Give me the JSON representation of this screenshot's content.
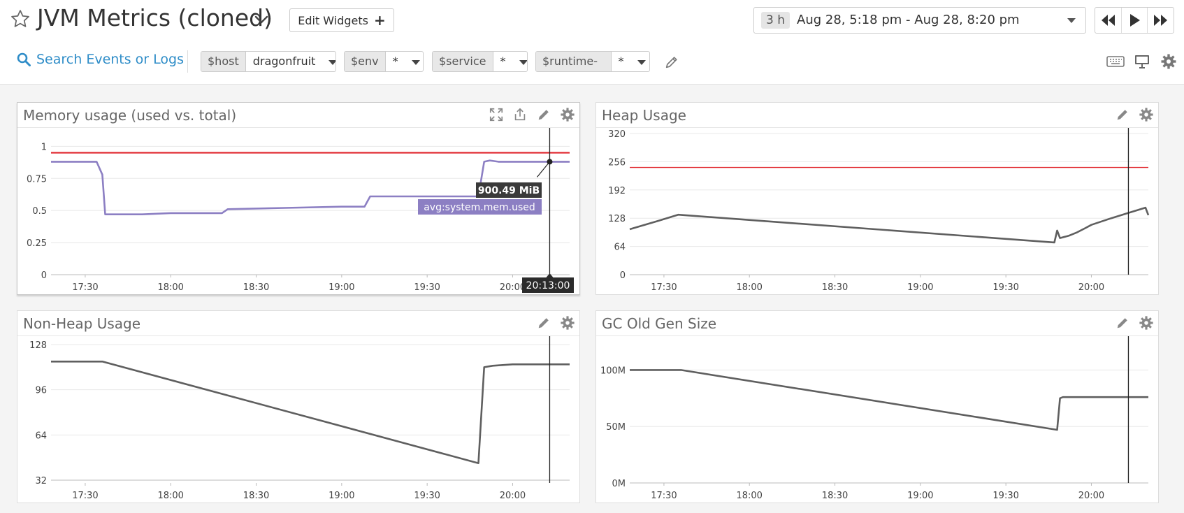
{
  "header": {
    "title": "JVM Metrics (cloned)",
    "edit_widgets_label": "Edit Widgets",
    "time_badge": "3 h",
    "time_range": "Aug 28, 5:18 pm - Aug 28, 8:20 pm"
  },
  "filters": {
    "search_label": "Search Events or Logs",
    "template_vars": [
      {
        "name": "$host",
        "value": "dragonfruit"
      },
      {
        "name": "$env",
        "value": "*"
      },
      {
        "name": "$service",
        "value": "*"
      },
      {
        "name": "$runtime-id",
        "value": "*"
      }
    ]
  },
  "icons": [
    "star-icon",
    "chevron-down-icon",
    "plus-icon",
    "rewind-icon",
    "play-icon",
    "fast-forward-icon",
    "search-icon",
    "pencil-icon",
    "keyboard-icon",
    "monitor-icon",
    "gear-icon",
    "expand-icon",
    "share-icon"
  ],
  "colors": {
    "accent": "#2f8dc8",
    "series_purple": "#8c7fc3",
    "series_gray": "#5f5f5f",
    "threshold_red": "#e0242b"
  },
  "widgets": [
    {
      "title": "Memory usage (used vs. total)"
    },
    {
      "title": "Heap Usage"
    },
    {
      "title": "Non-Heap Usage"
    },
    {
      "title": "GC Old Gen Size"
    }
  ],
  "tooltip": {
    "value": "900.49 MiB",
    "series": "avg:system.mem.used",
    "time": "20:13:00"
  },
  "chart_data": [
    {
      "type": "line",
      "xlabel": "",
      "ylabel": "",
      "x_ticks": [
        "17:30",
        "18:00",
        "18:30",
        "19:00",
        "19:30",
        "20:00"
      ],
      "y_ticks": [
        "0",
        "0.25",
        "0.5",
        "0.75",
        "1"
      ],
      "xlim": [
        "17:18",
        "20:20"
      ],
      "ylim": [
        0,
        1.1
      ],
      "threshold": 0.95,
      "cursor_x": "20:13",
      "series": [
        {
          "name": "avg:system.mem.used",
          "x": [
            "17:18",
            "17:34",
            "17:36",
            "17:37",
            "17:50",
            "18:00",
            "18:18",
            "18:20",
            "18:40",
            "19:00",
            "19:04",
            "19:08",
            "19:10",
            "19:30",
            "19:48",
            "19:50",
            "19:52",
            "19:55",
            "20:00",
            "20:10",
            "20:20"
          ],
          "y": [
            0.88,
            0.88,
            0.78,
            0.47,
            0.47,
            0.48,
            0.48,
            0.51,
            0.52,
            0.53,
            0.53,
            0.53,
            0.61,
            0.61,
            0.61,
            0.88,
            0.89,
            0.88,
            0.88,
            0.88,
            0.88
          ]
        }
      ]
    },
    {
      "type": "line",
      "xlabel": "",
      "ylabel": "",
      "x_ticks": [
        "17:30",
        "18:00",
        "18:30",
        "19:00",
        "19:30",
        "20:00"
      ],
      "y_ticks": [
        "0",
        "64",
        "128",
        "192",
        "256",
        "320"
      ],
      "xlim": [
        "17:18",
        "20:20"
      ],
      "ylim": [
        0,
        320
      ],
      "threshold": 243,
      "cursor_x": "20:13",
      "series": [
        {
          "x": [
            "17:18",
            "17:28",
            "17:35",
            "19:47",
            "19:48",
            "19:49",
            "19:52",
            "19:55",
            "19:58",
            "20:00",
            "20:07",
            "20:12",
            "20:19",
            "20:20"
          ],
          "y": [
            103,
            122,
            136,
            73,
            100,
            83,
            88,
            96,
            106,
            113,
            128,
            138,
            152,
            135
          ]
        }
      ]
    },
    {
      "type": "line",
      "xlabel": "",
      "ylabel": "",
      "x_ticks": [
        "17:30",
        "18:00",
        "18:30",
        "19:00",
        "19:30",
        "20:00"
      ],
      "y_ticks": [
        "32",
        "64",
        "96",
        "128"
      ],
      "xlim": [
        "17:18",
        "20:20"
      ],
      "ylim": [
        30,
        130
      ],
      "cursor_x": "20:13",
      "series": [
        {
          "x": [
            "17:18",
            "17:24",
            "17:36",
            "19:48",
            "19:50",
            "19:53",
            "20:00",
            "20:20"
          ],
          "y": [
            116,
            116,
            116,
            44,
            112,
            113,
            114,
            114
          ]
        }
      ]
    },
    {
      "type": "line",
      "xlabel": "",
      "ylabel": "",
      "x_ticks": [
        "17:30",
        "18:00",
        "18:30",
        "19:00",
        "19:30",
        "20:00"
      ],
      "y_ticks": [
        "0M",
        "50M",
        "100M"
      ],
      "y_tick_values": [
        0,
        50,
        100
      ],
      "xlim": [
        "17:18",
        "20:20"
      ],
      "ylim": [
        0,
        125
      ],
      "cursor_x": "20:13",
      "series": [
        {
          "x": [
            "17:18",
            "17:36",
            "19:48",
            "19:49",
            "19:50",
            "20:20"
          ],
          "y": [
            100,
            100,
            47,
            75,
            76,
            76
          ]
        }
      ]
    }
  ]
}
